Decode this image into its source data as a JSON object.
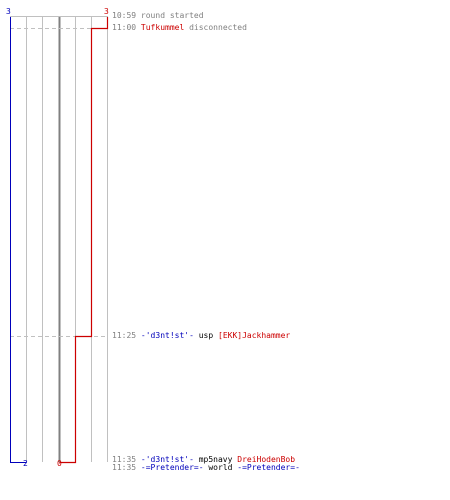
{
  "colors": {
    "team_blue": "#0000bb",
    "team_red": "#cc0000",
    "grid": "#c0c0c0",
    "center": "#808080",
    "time": "#808080",
    "dash": "#c0c0c0"
  },
  "scores": {
    "blue_start": "3",
    "red_start": "3",
    "blue_end": "2",
    "red_end": "0"
  },
  "events": [
    {
      "time": "10:59",
      "parts": [
        {
          "text": "round started",
          "color": "gray"
        }
      ]
    },
    {
      "time": "11:00",
      "parts": [
        {
          "text": "Tufkummel",
          "color": "red"
        },
        {
          "text": " disconnected",
          "color": "gray"
        }
      ]
    },
    {
      "time": "11:25",
      "parts": [
        {
          "text": "-'d3nt!st'-",
          "color": "blue"
        },
        {
          "text": " usp ",
          "color": "black"
        },
        {
          "text": "[EKK]Jackhammer",
          "color": "red"
        }
      ]
    },
    {
      "time": "11:35",
      "parts": [
        {
          "text": "-'d3nt!st'-",
          "color": "blue"
        },
        {
          "text": " mp5navy ",
          "color": "black"
        },
        {
          "text": "DreiHodenBob",
          "color": "red"
        }
      ]
    },
    {
      "time": "11:35",
      "parts": [
        {
          "text": "-=Pretender=-",
          "color": "blue"
        },
        {
          "text": " world ",
          "color": "black"
        },
        {
          "text": "-=Pretender=-",
          "color": "blue"
        }
      ]
    }
  ]
}
